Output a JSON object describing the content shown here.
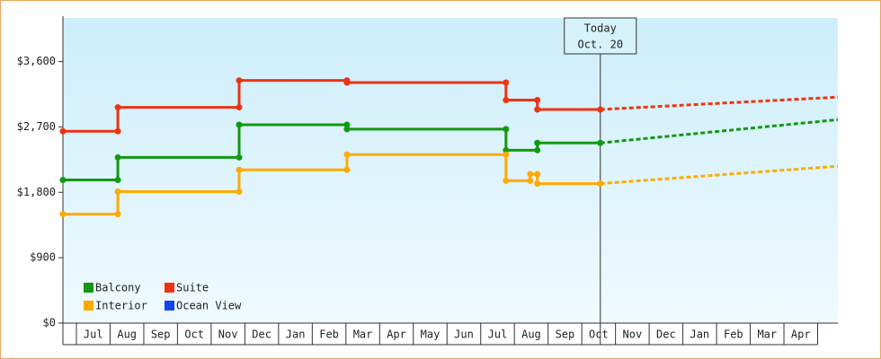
{
  "chart_data": {
    "type": "step-line",
    "categories": [
      "Jul",
      "Aug",
      "Sep",
      "Oct",
      "Nov",
      "Dec",
      "Jan",
      "Feb",
      "Mar",
      "Apr",
      "May",
      "Jun",
      "Jul",
      "Aug",
      "Sep",
      "Oct",
      "Nov",
      "Dec",
      "Jan",
      "Feb",
      "Mar",
      "Apr"
    ],
    "xlim": [
      -0.4,
      22.6
    ],
    "ylim": [
      0,
      4200
    ],
    "yticks": [
      {
        "value": 0,
        "label": "$0"
      },
      {
        "value": 900,
        "label": "$900"
      },
      {
        "value": 1800,
        "label": "$1,800"
      },
      {
        "value": 2700,
        "label": "$2,700"
      },
      {
        "value": 3600,
        "label": "$3,600"
      }
    ],
    "annotation": {
      "lines": [
        "Today",
        "Oct. 20"
      ],
      "x": 15.55
    },
    "series": [
      {
        "name": "Balcony",
        "color": "#119911",
        "x": [
          -0.4,
          1.23,
          1.23,
          4.83,
          4.83,
          8.03,
          8.03,
          12.75,
          12.75,
          13.68,
          13.68,
          15.55
        ],
        "values": [
          1970,
          1970,
          2280,
          2280,
          2730,
          2730,
          2670,
          2670,
          2380,
          2380,
          2480,
          2480
        ],
        "forecast": {
          "x": 22.6,
          "value": 2800
        }
      },
      {
        "name": "Suite",
        "color": "#ee3311",
        "x": [
          -0.4,
          1.23,
          1.23,
          4.83,
          4.83,
          8.03,
          8.03,
          12.75,
          12.75,
          13.68,
          13.68,
          15.55
        ],
        "values": [
          2640,
          2640,
          2970,
          2970,
          3340,
          3340,
          3310,
          3310,
          3070,
          3070,
          2940,
          2940
        ],
        "forecast": {
          "x": 22.6,
          "value": 3110
        }
      },
      {
        "name": "Interior",
        "color": "#ffaa00",
        "x": [
          -0.4,
          1.23,
          1.23,
          4.83,
          4.83,
          8.03,
          8.03,
          12.75,
          12.75,
          13.47,
          13.47,
          13.68,
          13.68,
          15.55
        ],
        "values": [
          1500,
          1500,
          1810,
          1810,
          2110,
          2110,
          2320,
          2320,
          1960,
          1960,
          2050,
          2050,
          1920,
          1920
        ],
        "forecast": {
          "x": 22.6,
          "value": 2160
        }
      },
      {
        "name": "Ocean View",
        "color": "#1144ee",
        "x": [],
        "values": []
      }
    ]
  }
}
